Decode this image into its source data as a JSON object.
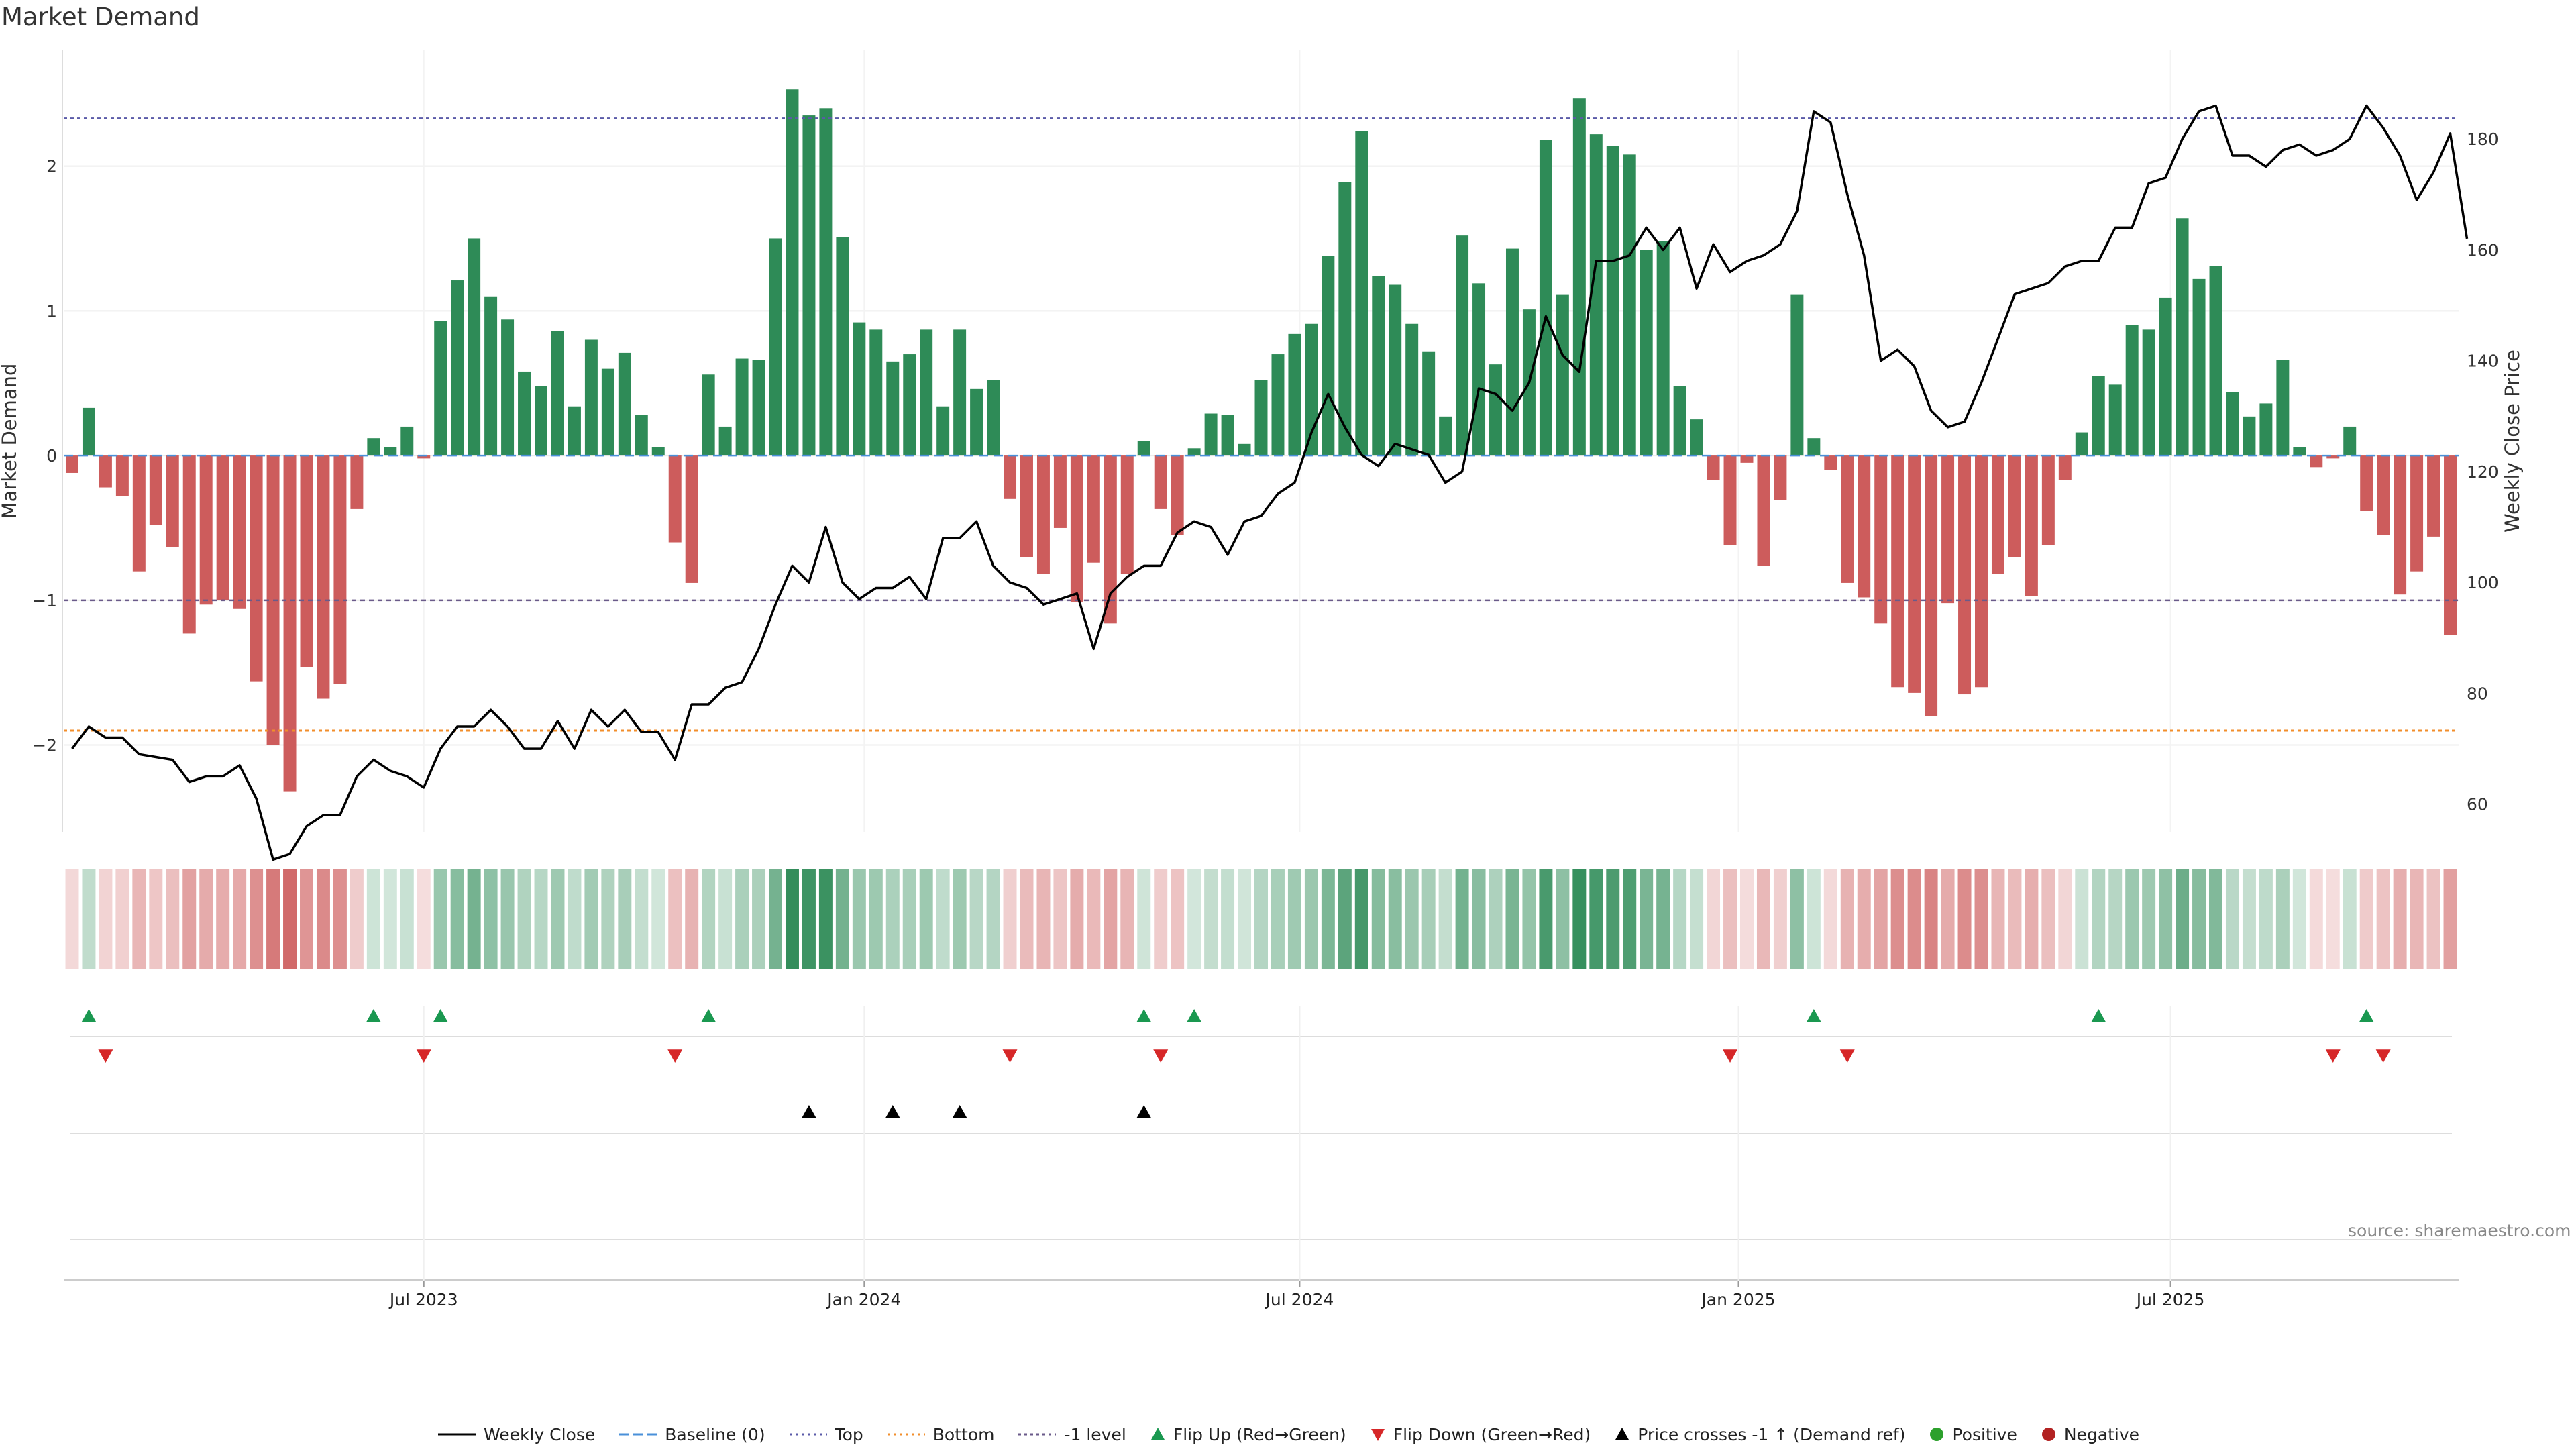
{
  "title": "Market Demand",
  "source": "source: sharemaestro.com",
  "colors": {
    "positive_bar": "#2e8b57",
    "negative_bar": "#cd5c5c",
    "price_line": "#000000",
    "top_line": "#5a5aa8",
    "bottom_line": "#f28e2b",
    "minus1_line": "#6a5a8a",
    "baseline": "#4a90d9",
    "flip_up": "#1a9850",
    "flip_down": "#d62728",
    "cross_marker": "#000000",
    "positive_dot": "#2ca02c",
    "negative_dot": "#b22222"
  },
  "legend": [
    {
      "label": "Weekly Close",
      "symbol": "solid-line",
      "color": "#000000"
    },
    {
      "label": "Baseline (0)",
      "symbol": "dashed-line",
      "color": "#4a90d9"
    },
    {
      "label": "Top",
      "symbol": "dotted-line",
      "color": "#5a5aa8"
    },
    {
      "label": "Bottom",
      "symbol": "dotted-line",
      "color": "#f28e2b"
    },
    {
      "label": "-1 level",
      "symbol": "dotted-line",
      "color": "#6a5a8a"
    },
    {
      "label": "Flip Up (Red→Green)",
      "symbol": "triangle-up",
      "color": "#1a9850"
    },
    {
      "label": "Flip Down (Green→Red)",
      "symbol": "triangle-down",
      "color": "#d62728"
    },
    {
      "label": "Price crosses -1 ↑ (Demand ref)",
      "symbol": "triangle-up",
      "color": "#000000"
    },
    {
      "label": "Positive",
      "symbol": "dot",
      "color": "#2ca02c"
    },
    {
      "label": "Negative",
      "symbol": "dot",
      "color": "#b22222"
    }
  ],
  "chart_data": {
    "type": "bar",
    "title": "Market Demand",
    "ylabel": "Market Demand",
    "y2label": "Weekly Close Price",
    "ylim": [
      -2.6,
      2.8
    ],
    "y2lim": [
      55,
      196
    ],
    "yticks": [
      -2,
      -1,
      0,
      1,
      2
    ],
    "yticklabels": [
      "−2",
      "−1",
      "0",
      "1",
      "2"
    ],
    "y2ticks": [
      60,
      80,
      100,
      120,
      140,
      160,
      180
    ],
    "xtick_labels": [
      "Jul 2023",
      "Jan 2024",
      "Jul 2024",
      "Jan 2025",
      "Jul 2025"
    ],
    "xtick_weeks": [
      21.5,
      47.8,
      73.8,
      100,
      125.8
    ],
    "levels": {
      "top": 2.33,
      "bottom": -1.9,
      "minus_one": -1.0,
      "baseline": 0
    },
    "series": [
      {
        "name": "Market Demand",
        "values": [
          -0.12,
          0.33,
          -0.22,
          -0.28,
          -0.8,
          -0.48,
          -0.63,
          -1.23,
          -1.03,
          -1.0,
          -1.06,
          -1.56,
          -2.0,
          -2.32,
          -1.46,
          -1.68,
          -1.58,
          -0.37,
          0.12,
          0.06,
          0.2,
          -0.02,
          0.93,
          1.21,
          1.5,
          1.1,
          0.94,
          0.58,
          0.48,
          0.86,
          0.34,
          0.8,
          0.6,
          0.71,
          0.28,
          0.06,
          -0.6,
          -0.88,
          0.56,
          0.2,
          0.67,
          0.66,
          1.5,
          2.53,
          2.35,
          2.4,
          1.51,
          0.92,
          0.87,
          0.65,
          0.7,
          0.87,
          0.34,
          0.87,
          0.46,
          0.52,
          -0.3,
          -0.7,
          -0.82,
          -0.5,
          -1.01,
          -0.74,
          -1.16,
          -0.82,
          0.1,
          -0.37,
          -0.55,
          0.05,
          0.29,
          0.28,
          0.08,
          0.52,
          0.7,
          0.84,
          0.91,
          1.38,
          1.89,
          2.24,
          1.24,
          1.18,
          0.91,
          0.72,
          0.27,
          1.52,
          1.19,
          0.63,
          1.43,
          1.01,
          2.18,
          1.11,
          2.47,
          2.22,
          2.14,
          2.08,
          1.42,
          1.48,
          0.48,
          0.25,
          -0.17,
          -0.62,
          -0.05,
          -0.76,
          -0.31,
          1.11,
          0.12,
          -0.1,
          -0.88,
          -0.98,
          -1.16,
          -1.6,
          -1.64,
          -1.8,
          -1.02,
          -1.65,
          -1.6,
          -0.82,
          -0.7,
          -0.97,
          -0.62,
          -0.17,
          0.16,
          0.55,
          0.49,
          0.9,
          0.87,
          1.09,
          1.64,
          1.22,
          1.31,
          0.44,
          0.27,
          0.36,
          0.66,
          0.06,
          -0.08,
          -0.02,
          0.2,
          -0.38,
          -0.55,
          -0.96,
          -0.8,
          -0.56,
          -1.24
        ]
      },
      {
        "name": "Weekly Close",
        "axis": "right",
        "values": [
          70,
          74,
          72,
          72,
          69,
          68.5,
          68,
          64,
          65,
          65,
          67,
          61,
          50,
          51,
          56,
          58,
          58,
          65,
          68,
          66,
          65,
          63,
          70,
          74,
          74,
          77,
          74,
          70,
          70,
          75,
          70,
          77,
          74,
          77,
          73,
          73,
          68,
          78,
          78,
          81,
          82,
          88,
          96,
          103,
          100,
          110,
          100,
          97,
          99,
          99,
          101,
          97,
          108,
          108,
          111,
          103,
          100,
          99,
          96,
          97,
          98,
          88,
          98,
          101,
          103,
          103,
          109,
          111,
          110,
          105,
          111,
          112,
          116,
          118,
          127,
          134,
          128,
          123,
          121,
          125,
          124,
          123,
          118,
          120,
          135,
          134,
          131,
          136,
          148,
          141,
          138,
          158,
          158,
          159,
          164,
          160,
          164,
          153,
          161,
          156,
          158,
          159,
          161,
          167,
          185,
          183,
          170,
          159,
          140,
          142,
          139,
          131,
          128,
          129,
          136,
          144,
          152,
          153,
          154,
          157,
          158,
          158,
          164,
          164,
          172,
          173,
          180,
          185,
          186,
          177,
          177,
          175,
          178,
          179,
          177,
          178,
          180,
          186,
          182,
          177,
          169,
          174,
          181,
          162
        ]
      }
    ],
    "heatmap_row": "demand intensity strip (same values as Market Demand)",
    "flip_up_weeks": [
      1,
      18,
      22,
      38,
      64,
      67,
      104,
      121,
      137
    ],
    "flip_down_weeks": [
      2,
      21,
      36,
      56,
      65,
      99,
      106,
      135,
      138
    ],
    "price_cross_weeks": [
      44,
      49,
      53,
      64
    ]
  }
}
